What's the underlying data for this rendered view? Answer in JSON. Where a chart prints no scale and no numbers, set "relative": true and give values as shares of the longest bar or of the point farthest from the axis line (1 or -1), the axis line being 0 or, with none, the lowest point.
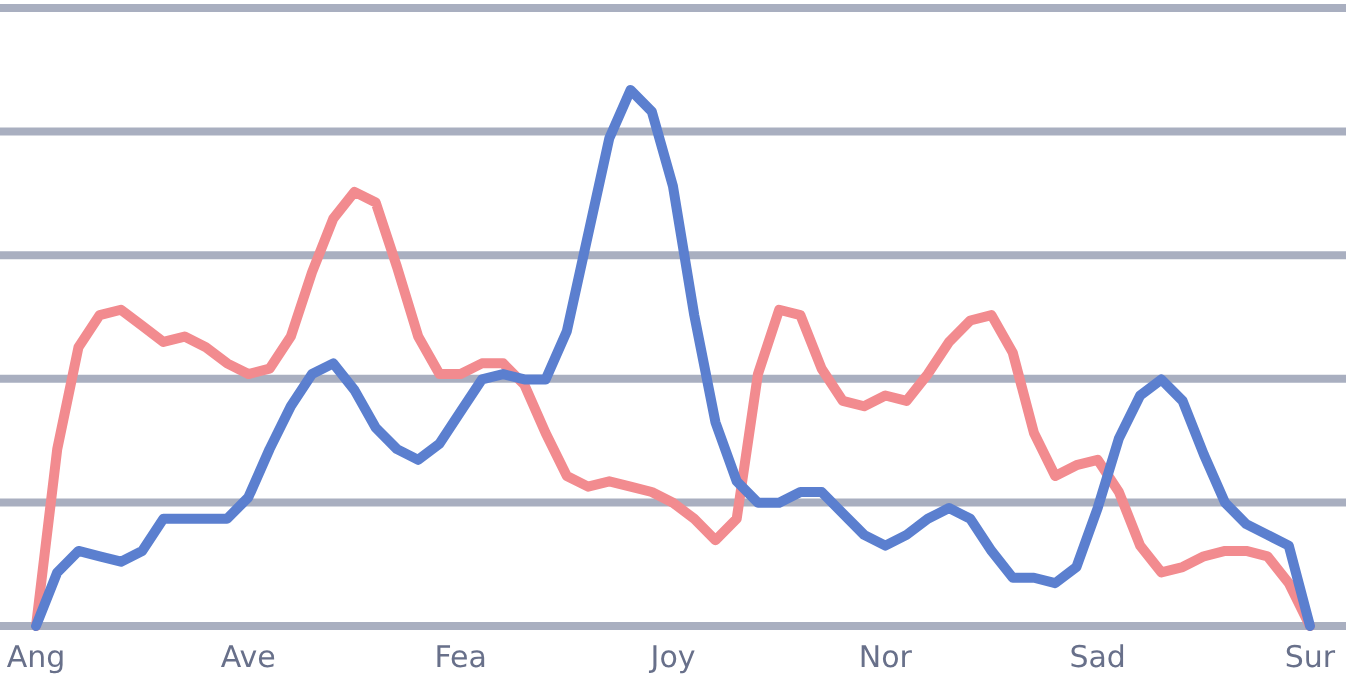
{
  "chart_data": {
    "type": "line",
    "relative": true,
    "grid": true,
    "categories": [
      "Ang",
      null,
      null,
      null,
      null,
      null,
      null,
      null,
      null,
      null,
      "Ave",
      null,
      null,
      null,
      null,
      null,
      null,
      null,
      null,
      null,
      "Fea",
      null,
      null,
      null,
      null,
      null,
      null,
      null,
      null,
      null,
      "Joy",
      null,
      null,
      null,
      null,
      null,
      null,
      null,
      null,
      null,
      "Nor",
      null,
      null,
      null,
      null,
      null,
      null,
      null,
      null,
      null,
      "Sad",
      null,
      null,
      null,
      null,
      null,
      null,
      null,
      null,
      null,
      "Sur"
    ],
    "series": [
      {
        "color": "#f28b8f",
        "values": [
          0,
          0.33,
          0.52,
          0.58,
          0.59,
          0.56,
          0.53,
          0.54,
          0.52,
          0.49,
          0.47,
          0.48,
          0.54,
          0.66,
          0.76,
          0.81,
          0.79,
          0.67,
          0.54,
          0.47,
          0.47,
          0.49,
          0.49,
          0.45,
          0.36,
          0.28,
          0.26,
          0.27,
          0.26,
          0.25,
          0.23,
          0.2,
          0.16,
          0.2,
          0.47,
          0.59,
          0.58,
          0.48,
          0.42,
          0.41,
          0.43,
          0.42,
          0.47,
          0.53,
          0.57,
          0.58,
          0.51,
          0.36,
          0.28,
          0.3,
          0.31,
          0.25,
          0.15,
          0.1,
          0.11,
          0.13,
          0.14,
          0.14,
          0.13,
          0.08,
          0
        ]
      },
      {
        "color": "#5b7fcf",
        "values": [
          0,
          0.1,
          0.14,
          0.13,
          0.12,
          0.14,
          0.2,
          0.2,
          0.2,
          0.2,
          0.24,
          0.33,
          0.41,
          0.47,
          0.49,
          0.44,
          0.37,
          0.33,
          0.31,
          0.34,
          0.4,
          0.46,
          0.47,
          0.46,
          0.46,
          0.55,
          0.73,
          0.91,
          1,
          0.96,
          0.82,
          0.58,
          0.38,
          0.27,
          0.23,
          0.23,
          0.25,
          0.25,
          0.21,
          0.17,
          0.15,
          0.17,
          0.2,
          0.22,
          0.2,
          0.14,
          0.09,
          0.09,
          0.08,
          0.11,
          0.22,
          0.35,
          0.43,
          0.46,
          0.42,
          0.32,
          0.23,
          0.19,
          0.17,
          0.15,
          0
        ]
      }
    ]
  }
}
